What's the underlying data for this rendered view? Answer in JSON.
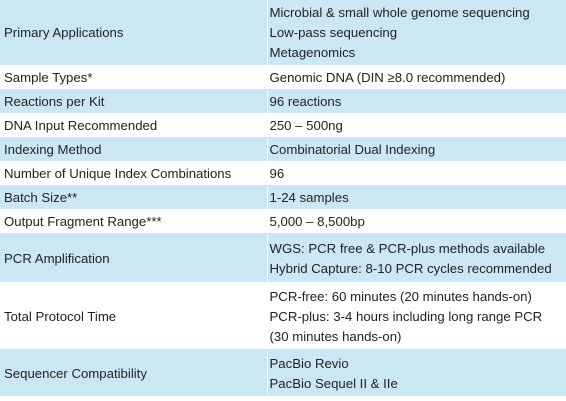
{
  "rows": [
    {
      "label": "Primary Applications",
      "lines": [
        "Microbial & small whole genome sequencing",
        "Low-pass sequencing",
        "Metagenomics"
      ]
    },
    {
      "label": "Sample Types*",
      "lines": [
        "Genomic DNA (DIN ≥8.0 recommended)"
      ]
    },
    {
      "label": "Reactions per Kit",
      "lines": [
        "96 reactions"
      ]
    },
    {
      "label": "DNA Input Recommended",
      "lines": [
        "250 – 500ng"
      ]
    },
    {
      "label": "Indexing Method",
      "lines": [
        "Combinatorial Dual Indexing"
      ]
    },
    {
      "label": "Number of Unique Index Combinations",
      "lines": [
        "96"
      ]
    },
    {
      "label": "Batch Size**",
      "lines": [
        "1-24 samples"
      ]
    },
    {
      "label": "Output Fragment Range***",
      "lines": [
        "5,000 – 8,500bp"
      ]
    },
    {
      "label": "PCR Amplification",
      "lines": [
        "WGS: PCR free & PCR-plus methods available",
        "Hybrid Capture: 8-10 PCR cycles recommended"
      ]
    },
    {
      "label": "Total Protocol Time",
      "lines": [
        "PCR-free: 60 minutes (20 minutes hands-on)",
        "PCR-plus: 3-4 hours including long range PCR",
        "(30 minutes hands-on)"
      ]
    },
    {
      "label": "Sequencer Compatibility",
      "lines": [
        "PacBio Revio",
        "PacBio Sequel II & IIe"
      ]
    }
  ],
  "colors": {
    "band": "#cbe7f4",
    "text": "#222222"
  }
}
